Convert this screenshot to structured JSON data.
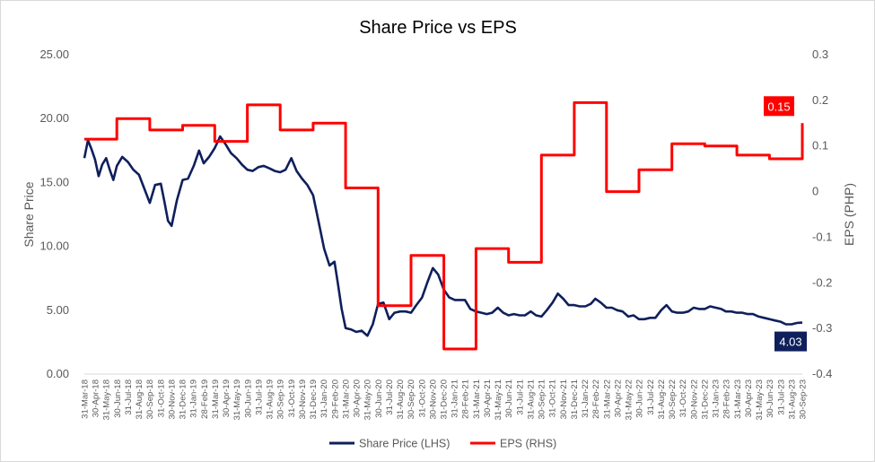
{
  "chart_data": {
    "type": "line",
    "title": "Share Price vs EPS",
    "ylabel_left": "Share Price",
    "ylabel_right": "EPS (PHP)",
    "ylim_left": [
      0,
      25
    ],
    "ylim_right": [
      -0.4,
      0.3
    ],
    "y_ticks_left": [
      "0.00",
      "5.00",
      "10.00",
      "15.00",
      "20.00",
      "25.00"
    ],
    "y_ticks_right": [
      "-0.4",
      "-0.3",
      "-0.2",
      "-0.1",
      "0",
      "0.1",
      "0.2",
      "0.3"
    ],
    "x_range": [
      "2018-03-31",
      "2023-09-30"
    ],
    "x_tick_labels": [
      "31-Mar-18",
      "30-Apr-18",
      "31-May-18",
      "30-Jun-18",
      "31-Jul-18",
      "31-Aug-18",
      "30-Sep-18",
      "31-Oct-18",
      "30-Nov-18",
      "31-Dec-18",
      "31-Jan-19",
      "28-Feb-19",
      "31-Mar-19",
      "30-Apr-19",
      "31-May-19",
      "30-Jun-19",
      "31-Jul-19",
      "31-Aug-19",
      "30-Sep-19",
      "31-Oct-19",
      "30-Nov-19",
      "31-Dec-19",
      "31-Jan-20",
      "29-Feb-20",
      "31-Mar-20",
      "30-Apr-20",
      "31-May-20",
      "30-Jun-20",
      "31-Jul-20",
      "31-Aug-20",
      "30-Sep-20",
      "31-Oct-20",
      "30-Nov-20",
      "31-Dec-20",
      "31-Jan-21",
      "28-Feb-21",
      "31-Mar-21",
      "30-Apr-21",
      "31-May-21",
      "30-Jun-21",
      "31-Jul-21",
      "31-Aug-21",
      "30-Sep-21",
      "31-Oct-21",
      "30-Nov-21",
      "31-Dec-21",
      "31-Jan-22",
      "28-Feb-22",
      "31-Mar-22",
      "30-Apr-22",
      "31-May-22",
      "30-Jun-22",
      "31-Jul-22",
      "31-Aug-22",
      "30-Sep-22",
      "31-Oct-22",
      "30-Nov-22",
      "31-Dec-22",
      "31-Jan-23",
      "28-Feb-23",
      "31-Mar-23",
      "30-Apr-23",
      "31-May-23",
      "30-Jun-23",
      "31-Jul-23",
      "31-Aug-23",
      "30-Sep-23"
    ],
    "grid": false,
    "legend": "bottom",
    "series": [
      {
        "name": "Share Price (LHS)",
        "axis": "left",
        "color": "#0f1f5c",
        "style": "line",
        "x": [
          "2018-03-31",
          "2018-04-10",
          "2018-04-20",
          "2018-04-30",
          "2018-05-10",
          "2018-05-20",
          "2018-05-31",
          "2018-06-10",
          "2018-06-20",
          "2018-06-30",
          "2018-07-15",
          "2018-07-31",
          "2018-08-15",
          "2018-08-31",
          "2018-09-15",
          "2018-09-30",
          "2018-10-15",
          "2018-10-31",
          "2018-11-10",
          "2018-11-20",
          "2018-11-30",
          "2018-12-15",
          "2018-12-31",
          "2019-01-15",
          "2019-01-31",
          "2019-02-15",
          "2019-02-28",
          "2019-03-15",
          "2019-03-31",
          "2019-04-15",
          "2019-04-30",
          "2019-05-15",
          "2019-05-31",
          "2019-06-15",
          "2019-06-30",
          "2019-07-15",
          "2019-07-31",
          "2019-08-15",
          "2019-08-31",
          "2019-09-15",
          "2019-09-30",
          "2019-10-15",
          "2019-10-31",
          "2019-11-15",
          "2019-11-30",
          "2019-12-15",
          "2019-12-31",
          "2020-01-15",
          "2020-01-31",
          "2020-02-15",
          "2020-02-29",
          "2020-03-10",
          "2020-03-20",
          "2020-03-31",
          "2020-04-15",
          "2020-04-30",
          "2020-05-15",
          "2020-05-31",
          "2020-06-15",
          "2020-06-30",
          "2020-07-15",
          "2020-07-31",
          "2020-08-15",
          "2020-08-31",
          "2020-09-15",
          "2020-09-30",
          "2020-10-15",
          "2020-10-31",
          "2020-11-15",
          "2020-11-30",
          "2020-12-15",
          "2020-12-31",
          "2021-01-15",
          "2021-01-31",
          "2021-02-15",
          "2021-02-28",
          "2021-03-15",
          "2021-03-31",
          "2021-04-15",
          "2021-04-30",
          "2021-05-15",
          "2021-05-31",
          "2021-06-15",
          "2021-06-30",
          "2021-07-15",
          "2021-07-31",
          "2021-08-15",
          "2021-08-31",
          "2021-09-15",
          "2021-09-30",
          "2021-10-15",
          "2021-10-31",
          "2021-11-15",
          "2021-11-30",
          "2021-12-15",
          "2021-12-31",
          "2022-01-15",
          "2022-01-31",
          "2022-02-15",
          "2022-02-28",
          "2022-03-15",
          "2022-03-31",
          "2022-04-15",
          "2022-04-30",
          "2022-05-15",
          "2022-05-31",
          "2022-06-15",
          "2022-06-30",
          "2022-07-15",
          "2022-07-31",
          "2022-08-15",
          "2022-08-31",
          "2022-09-15",
          "2022-09-30",
          "2022-10-15",
          "2022-10-31",
          "2022-11-15",
          "2022-11-30",
          "2022-12-15",
          "2022-12-31",
          "2023-01-15",
          "2023-01-31",
          "2023-02-15",
          "2023-02-28",
          "2023-03-15",
          "2023-03-31",
          "2023-04-15",
          "2023-04-30",
          "2023-05-15",
          "2023-05-31",
          "2023-06-15",
          "2023-06-30",
          "2023-07-15",
          "2023-07-31",
          "2023-08-15",
          "2023-08-31",
          "2023-09-15",
          "2023-09-30"
        ],
        "values": [
          16.9,
          18.3,
          17.6,
          16.8,
          15.5,
          16.4,
          16.9,
          16.0,
          15.2,
          16.3,
          17.0,
          16.6,
          16.0,
          15.6,
          14.5,
          13.4,
          14.8,
          14.9,
          13.5,
          12.0,
          11.6,
          13.6,
          15.2,
          15.3,
          16.3,
          17.5,
          16.5,
          17.0,
          17.7,
          18.6,
          18.0,
          17.3,
          16.9,
          16.4,
          16.0,
          15.9,
          16.2,
          16.3,
          16.1,
          15.9,
          15.8,
          16.0,
          16.9,
          15.9,
          15.3,
          14.8,
          14.0,
          12.0,
          9.8,
          8.5,
          8.8,
          7.0,
          5.1,
          3.6,
          3.5,
          3.3,
          3.4,
          3.0,
          3.9,
          5.5,
          5.6,
          4.3,
          4.8,
          4.9,
          4.9,
          4.8,
          5.4,
          6.0,
          7.2,
          8.3,
          7.8,
          6.6,
          6.0,
          5.8,
          5.8,
          5.8,
          5.1,
          4.9,
          4.8,
          4.7,
          4.8,
          5.2,
          4.8,
          4.6,
          4.7,
          4.6,
          4.6,
          4.9,
          4.6,
          4.5,
          5.0,
          5.6,
          6.3,
          5.9,
          5.4,
          5.4,
          5.3,
          5.3,
          5.5,
          5.9,
          5.6,
          5.2,
          5.2,
          5.0,
          4.9,
          4.5,
          4.6,
          4.3,
          4.3,
          4.4,
          4.4,
          5.0,
          5.4,
          4.9,
          4.8,
          4.8,
          4.9,
          5.2,
          5.1,
          5.1,
          5.3,
          5.2,
          5.1,
          4.9,
          4.9,
          4.8,
          4.8,
          4.7,
          4.7,
          4.5,
          4.4,
          4.3,
          4.2,
          4.1,
          3.9,
          3.9,
          4.0,
          4.03
        ]
      },
      {
        "name": "EPS (RHS)",
        "axis": "right",
        "color": "#ff0000",
        "style": "step",
        "x": [
          "2018-03-31",
          "2018-06-30",
          "2018-09-30",
          "2018-12-31",
          "2019-03-31",
          "2019-06-30",
          "2019-09-30",
          "2019-12-31",
          "2020-03-31",
          "2020-06-30",
          "2020-09-30",
          "2020-12-31",
          "2021-03-31",
          "2021-06-30",
          "2021-09-30",
          "2021-12-31",
          "2022-03-31",
          "2022-06-30",
          "2022-09-30",
          "2022-12-31",
          "2023-03-31",
          "2023-06-30",
          "2023-09-30"
        ],
        "values": [
          0.115,
          0.16,
          0.135,
          0.145,
          0.11,
          0.19,
          0.135,
          0.15,
          0.008,
          -0.25,
          -0.14,
          -0.345,
          -0.125,
          -0.155,
          0.08,
          0.195,
          0.0,
          0.048,
          0.105,
          0.1,
          0.08,
          0.072,
          0.15
        ]
      }
    ],
    "annotations": [
      {
        "series": "EPS (RHS)",
        "x": "2023-09-30",
        "label": "0.15"
      },
      {
        "series": "Share Price (LHS)",
        "x": "2023-09-30",
        "label": "4.03"
      }
    ]
  }
}
